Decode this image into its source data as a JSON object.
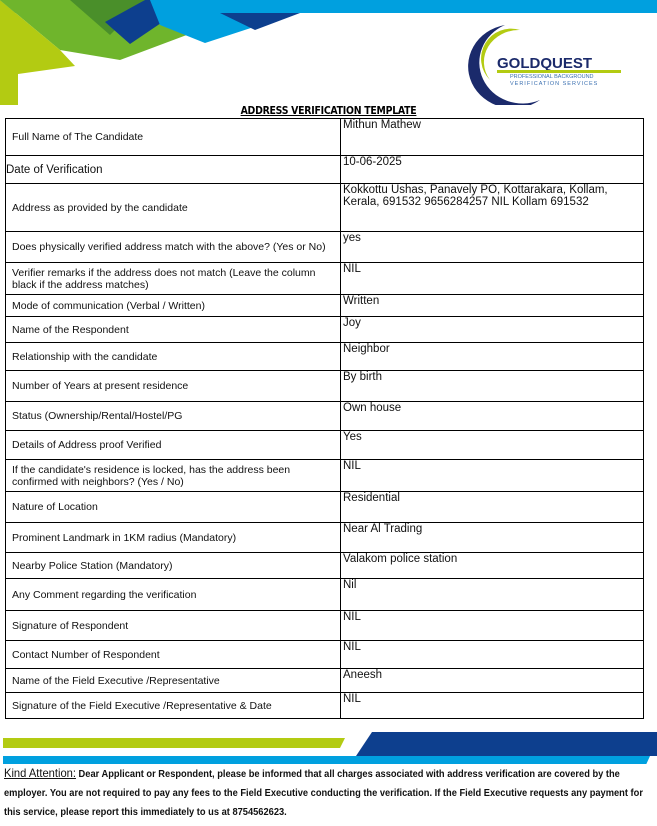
{
  "logo": {
    "brand": "GOLDQUEST",
    "tagline1": "PROFESSIONAL BACKGROUND",
    "tagline2": "VERIFICATION SERVICES"
  },
  "colors": {
    "lime": "#b3cb12",
    "green": "#6fb52c",
    "darkgreen": "#4a8f2a",
    "navy": "#0d3f8e",
    "sky": "#00a0df"
  },
  "title": "ADDRESS VERIFICATION TEMPLATE",
  "rows": [
    {
      "label": "Full Name of The Candidate",
      "value": "Mithun Mathew"
    },
    {
      "label": "Date of Verification",
      "value": "10-06-2025"
    },
    {
      "label": "Address as provided by the candidate",
      "value": "Kokkottu Ushas, Panavely PO, Kottarakara, Kollam, Kerala, 691532 9656284257 NIL Kollam 691532"
    },
    {
      "label": "Does physically verified address match with the above? (Yes or No)",
      "value": "yes"
    },
    {
      "label": "Verifier remarks if the address does not match (Leave the column black if the address matches)",
      "value": "NIL"
    },
    {
      "label": "Mode of communication (Verbal / Written)",
      "value": "Written"
    },
    {
      "label": "Name of the Respondent",
      "value": "Joy"
    },
    {
      "label": "Relationship with the candidate",
      "value": "Neighbor"
    },
    {
      "label": "Number of Years at present residence",
      "value": "By birth"
    },
    {
      "label": "Status (Ownership/Rental/Hostel/PG",
      "value": "Own house"
    },
    {
      "label": "Details of Address proof Verified",
      "value": "Yes"
    },
    {
      "label": "If the candidate's residence is locked, has the address been confirmed with neighbors? (Yes / No)",
      "value": "NIL"
    },
    {
      "label": "Nature of Location",
      "value": "Residential"
    },
    {
      "label": "Prominent Landmark in 1KM radius (Mandatory)",
      "value": " Near Al Trading"
    },
    {
      "label": "Nearby Police Station (Mandatory)",
      "value": "Valakom police station"
    },
    {
      "label": "Any Comment regarding the verification",
      "value": "Nil"
    },
    {
      "label": "Signature of Respondent",
      "value": "NIL"
    },
    {
      "label": "Contact Number of Respondent",
      "value": "NIL"
    },
    {
      "label": "Name of the Field Executive /Representative",
      "value": "Aneesh"
    },
    {
      "label": "Signature of the Field Executive /Representative & Date",
      "value": "NIL"
    }
  ],
  "footer": {
    "kind_attention": "Kind Attention:",
    "message": " Dear Applicant or Respondent, please be informed that all charges associated with address verification are covered by the employer. You are not required to pay any fees to the Field Executive conducting the verification. If the Field Executive requests any payment for this service, please report this immediately to us at 8754562623."
  }
}
